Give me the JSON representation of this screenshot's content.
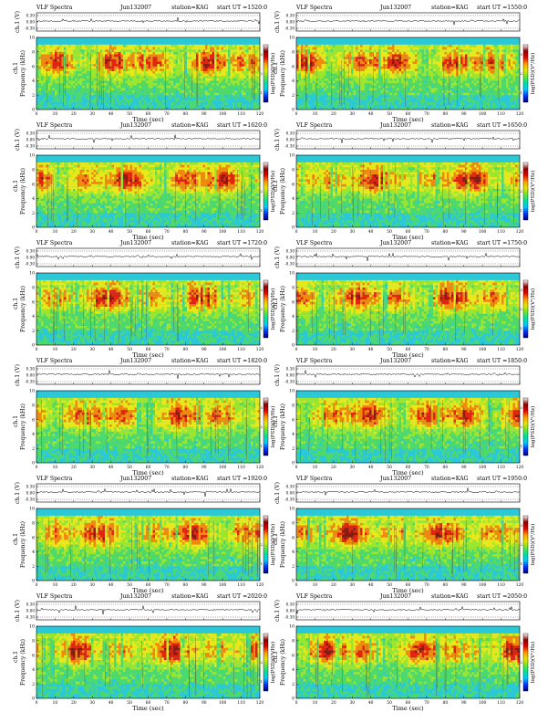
{
  "figure": {
    "panels": [
      {
        "title": "VLF Spectra",
        "date": "Jun132007",
        "station": "station=KAG",
        "start": "start UT =1520:0"
      },
      {
        "title": "VLF Spectra",
        "date": "Jun132007",
        "station": "station=KAG",
        "start": "start UT =1550:0"
      },
      {
        "title": "VLF Spectra",
        "date": "Jun132007",
        "station": "station=KAG",
        "start": "start UT =1620:0"
      },
      {
        "title": "VLF Spectra",
        "date": "Jun132007",
        "station": "station=KAG",
        "start": "start UT =1650:0"
      },
      {
        "title": "VLF Spectra",
        "date": "Jun132007",
        "station": "station=KAG",
        "start": "start UT =1720:0"
      },
      {
        "title": "VLF Spectra",
        "date": "Jun132007",
        "station": "station=KAG",
        "start": "start UT =1750:0"
      },
      {
        "title": "VLF Spectra",
        "date": "Jun132007",
        "station": "station=KAG",
        "start": "start UT =1820:0"
      },
      {
        "title": "VLF Spectra",
        "date": "Jun132007",
        "station": "station=KAG",
        "start": "start UT =1850:0"
      },
      {
        "title": "VLF Spectra",
        "date": "Jun132007",
        "station": "station=KAG",
        "start": "start UT =1920:0"
      },
      {
        "title": "VLF Spectra",
        "date": "Jun132007",
        "station": "station=KAG",
        "start": "start UT =1950:0"
      },
      {
        "title": "VLF Spectra",
        "date": "Jun132007",
        "station": "station=KAG",
        "start": "start UT =2020:0"
      },
      {
        "title": "VLF Spectra",
        "date": "Jun132007",
        "station": "station=KAG",
        "start": "start UT =2050:0"
      }
    ]
  },
  "chart_data": {
    "type": "heatmap",
    "layout": "6 rows x 2 columns",
    "xlabel": "Time (sec)",
    "xlim": [
      0,
      120
    ],
    "xticks": [
      0,
      10,
      20,
      30,
      40,
      50,
      60,
      70,
      80,
      90,
      100,
      110,
      120
    ],
    "top_panel": {
      "ylabel": "ch.1 (V)",
      "yticks": [
        "0.30",
        "0.00",
        "-0.30"
      ]
    },
    "spectrogram": {
      "ylabel": "Frequency (kHz)",
      "ylim": [
        0,
        10
      ],
      "yticks": [
        0,
        2,
        4,
        6,
        8,
        10
      ],
      "channel_label": "ch.1"
    },
    "colorbar": {
      "label": "log(PSD)(V²/Hz)",
      "colors": [
        "#00007a",
        "#0033ff",
        "#00c8ff",
        "#00e0a0",
        "#66e633",
        "#e6e600",
        "#ff9900",
        "#e60000",
        "#8b0000",
        "#ffffff"
      ],
      "ticks": [
        "1",
        "2",
        "3"
      ]
    },
    "color_scale": [
      "#2bc8d8",
      "#4fd96a",
      "#9ce62f",
      "#e9e81a",
      "#ef8a0e",
      "#e32310",
      "#8a1a10"
    ]
  }
}
